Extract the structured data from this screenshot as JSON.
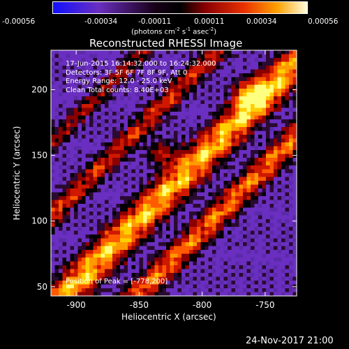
{
  "chart_data": {
    "type": "heatmap",
    "title": "Reconstructed RHESSI Image",
    "colorbar": {
      "ticks": [
        "-0.00056",
        "-0.00034",
        "-0.00011",
        "0.00011",
        "0.00034",
        "0.00056"
      ],
      "range": [
        -0.00056,
        0.00056
      ],
      "unit_prefix": "(photons cm",
      "unit_sup1": "-2",
      "unit_mid": " s",
      "unit_sup2": "-1",
      "unit_mid2": " asec",
      "unit_sup3": "-2",
      "unit_suffix": ")"
    },
    "xlabel": "Heliocentric X (arcsec)",
    "ylabel": "Heliocentric Y (arcsec)",
    "xlim": [
      -920,
      -725
    ],
    "ylim": [
      43,
      230
    ],
    "xticks": [
      {
        "value": -900,
        "label": "-900"
      },
      {
        "value": -850,
        "label": "-850"
      },
      {
        "value": -800,
        "label": "-800"
      },
      {
        "value": -750,
        "label": "-750"
      }
    ],
    "yticks": [
      {
        "value": 50,
        "label": "50"
      },
      {
        "value": 100,
        "label": "100"
      },
      {
        "value": 150,
        "label": "150"
      },
      {
        "value": 200,
        "label": "200"
      }
    ],
    "annotations": [
      "17-Jun-2015 16:14:32.000 to 16:24:32.000",
      "Detectors: 3F 5F 6F 7F 8F 9F, Att 0",
      "Energy Range: 12.0 - 25.0 keV",
      "Clean     Total counts: 8.40E+03"
    ],
    "peak_label": "Position of Peak = [-778,200]",
    "colors": {
      "neg": "#6a2ec0",
      "dark": "#000000",
      "hot": [
        "#8a0000",
        "#d01800",
        "#ff5a00",
        "#ff9a00",
        "#ffd000",
        "#ffff80"
      ]
    }
  },
  "footer": {
    "timestamp": "24-Nov-2017 21:00"
  }
}
